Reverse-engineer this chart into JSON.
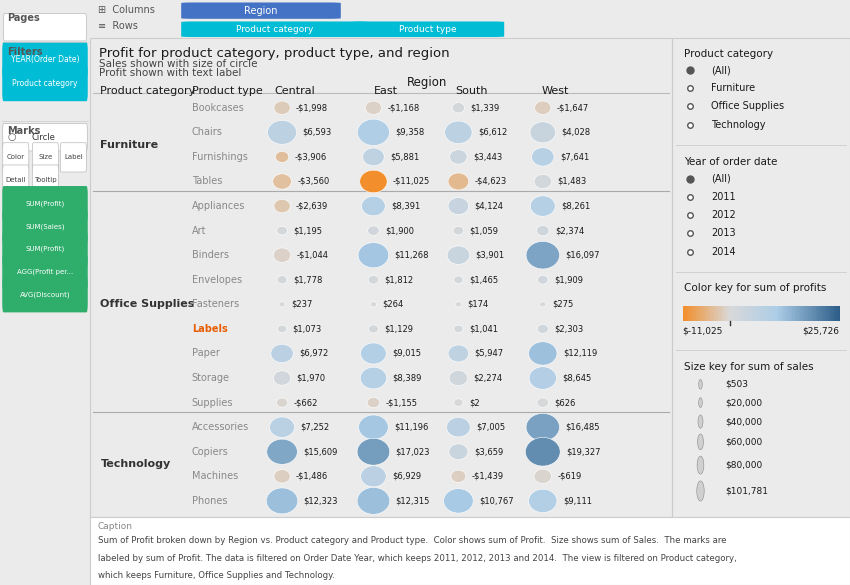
{
  "title": "Profit for product category, product type, and region",
  "subtitle1": "Sales shown with size of circle",
  "subtitle2": "Profit shown with text label",
  "region_label": "Region",
  "caption": "Sum of Profit broken down by Region vs. Product category and Product type.  Color shows sum of Profit.  Size shows sum of Sales.  The marks are\nlabeled by sum of Profit. The data is filtered on Order Date Year, which keeps 2011, 2012, 2013 and 2014.  The view is filtered on Product category,\nwhich keeps Furniture, Office Supplies and Technology.",
  "rows": [
    {
      "category": "Furniture",
      "type": "Bookcases",
      "bold_type": false,
      "profit": [
        -1998,
        -1168,
        1339,
        -1647
      ],
      "sales": [
        10000,
        10000,
        5000,
        10000
      ]
    },
    {
      "category": "Furniture",
      "type": "Chairs",
      "bold_type": false,
      "profit": [
        6593,
        9358,
        6612,
        4028
      ],
      "sales": [
        40000,
        50000,
        35000,
        30000
      ]
    },
    {
      "category": "Furniture",
      "type": "Furnishings",
      "bold_type": false,
      "profit": [
        -3906,
        5881,
        3443,
        7641
      ],
      "sales": [
        6000,
        20000,
        12000,
        22000
      ]
    },
    {
      "category": "Furniture",
      "type": "Tables",
      "bold_type": false,
      "profit": [
        -3560,
        -11025,
        -4623,
        1483
      ],
      "sales": [
        14000,
        35000,
        18000,
        12000
      ]
    },
    {
      "category": "Office Supplies",
      "type": "Appliances",
      "bold_type": false,
      "profit": [
        -2639,
        8391,
        4124,
        8261
      ],
      "sales": [
        10000,
        25000,
        18000,
        28000
      ]
    },
    {
      "category": "Office Supplies",
      "type": "Art",
      "bold_type": false,
      "profit": [
        1195,
        1900,
        1059,
        2374
      ],
      "sales": [
        3000,
        4000,
        3000,
        5000
      ]
    },
    {
      "category": "Office Supplies",
      "type": "Binders",
      "bold_type": false,
      "profit": [
        -1044,
        11268,
        3901,
        16097
      ],
      "sales": [
        12000,
        45000,
        22000,
        55000
      ]
    },
    {
      "category": "Office Supplies",
      "type": "Envelopes",
      "bold_type": false,
      "profit": [
        1778,
        1812,
        1465,
        1909
      ],
      "sales": [
        2500,
        3000,
        2000,
        3000
      ]
    },
    {
      "category": "Office Supplies",
      "type": "Fasteners",
      "bold_type": false,
      "profit": [
        237,
        264,
        174,
        275
      ],
      "sales": [
        503,
        503,
        503,
        503
      ]
    },
    {
      "category": "Office Supplies",
      "type": "Labels",
      "bold_type": true,
      "profit": [
        1073,
        1129,
        1041,
        2303
      ],
      "sales": [
        2000,
        2500,
        2000,
        3500
      ]
    },
    {
      "category": "Office Supplies",
      "type": "Paper",
      "bold_type": false,
      "profit": [
        6972,
        9015,
        5947,
        12119
      ],
      "sales": [
        22000,
        30000,
        18000,
        38000
      ]
    },
    {
      "category": "Office Supplies",
      "type": "Storage",
      "bold_type": false,
      "profit": [
        1970,
        8389,
        2274,
        8645
      ],
      "sales": [
        12000,
        32000,
        14000,
        35000
      ]
    },
    {
      "category": "Office Supplies",
      "type": "Supplies",
      "bold_type": false,
      "profit": [
        -662,
        -1155,
        2,
        626
      ],
      "sales": [
        3500,
        5000,
        2000,
        4000
      ]
    },
    {
      "category": "Technology",
      "type": "Accessories",
      "bold_type": false,
      "profit": [
        7252,
        11196,
        7005,
        16485
      ],
      "sales": [
        28000,
        42000,
        25000,
        55000
      ]
    },
    {
      "category": "Technology",
      "type": "Copiers",
      "bold_type": false,
      "profit": [
        15609,
        17023,
        3659,
        19327
      ],
      "sales": [
        45000,
        52000,
        15000,
        60000
      ]
    },
    {
      "category": "Technology",
      "type": "Machines",
      "bold_type": false,
      "profit": [
        -1486,
        6929,
        -1439,
        -619
      ],
      "sales": [
        10000,
        30000,
        8000,
        12000
      ]
    },
    {
      "category": "Technology",
      "type": "Phones",
      "bold_type": false,
      "profit": [
        12323,
        12315,
        10767,
        9111
      ],
      "sales": [
        48000,
        52000,
        42000,
        38000
      ]
    }
  ],
  "profit_min": -11025,
  "profit_max": 25726,
  "sales_max": 101781,
  "pages_label": "Pages",
  "filters_label": "Filters",
  "marks_label": "Marks",
  "legend_cat_title": "Product category",
  "legend_year_title": "Year of order date",
  "legend_color_title": "Color key for sum of profits",
  "legend_size_title": "Size key for sum of sales",
  "sidebar_items_cat": [
    "(All)",
    "Furniture",
    "Office Supplies",
    "Technology"
  ],
  "sidebar_items_year": [
    "(All)",
    "2011",
    "2012",
    "2013",
    "2014"
  ],
  "size_legend_vals": [
    503,
    20000,
    40000,
    60000,
    80000,
    101781
  ],
  "size_legend_labels": [
    "$503",
    "$20,000",
    "$40,000",
    "$60,000",
    "$80,000",
    "$101,781"
  ],
  "marks_pills": [
    "SUM(Profit)",
    "SUM(Sales)",
    "SUM(Profit)",
    "AGG(Profit per...",
    "AVG(Discount)"
  ],
  "filters_pills": [
    "YEAR(Order Date)",
    "Product category"
  ],
  "col_pill_color": "#4472C4",
  "row_pill_color": "#00BCD4",
  "filter_pill_color": "#00BCD4",
  "marks_pill_color": "#2EAD6B",
  "bg_color": "#EBEBEB",
  "chart_bg": "#FFFFFF",
  "sidebar_bg": "#F5F5F5",
  "border_color": "#CCCCCC",
  "text_dark": "#1a1a1a",
  "text_mid": "#444444",
  "text_light": "#888888",
  "cat_label_color": "#333333",
  "type_label_color": "#888888",
  "type_label_bold_color": "#E85D04"
}
